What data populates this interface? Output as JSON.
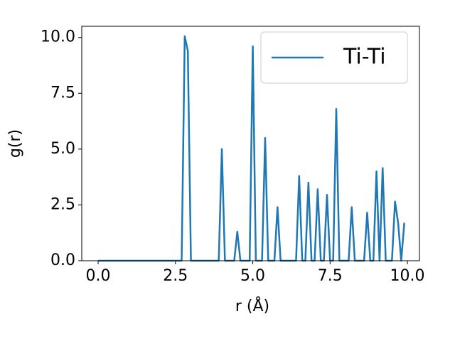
{
  "chart_data": {
    "type": "line",
    "xlabel": "r (Å)",
    "ylabel": "g(r)",
    "x": [
      0,
      0.1,
      0.2,
      0.3,
      0.4,
      0.5,
      0.6,
      0.7,
      0.8,
      0.9,
      1,
      1.1,
      1.2,
      1.3,
      1.4,
      1.5,
      1.6,
      1.7,
      1.8,
      1.9,
      2,
      2.1,
      2.2,
      2.3,
      2.4,
      2.5,
      2.6,
      2.7,
      2.8,
      2.9,
      3,
      3.1,
      3.2,
      3.3,
      3.4,
      3.5,
      3.6,
      3.7,
      3.8,
      3.9,
      4,
      4.1,
      4.2,
      4.3,
      4.4,
      4.5,
      4.6,
      4.7,
      4.8,
      4.9,
      5,
      5.1,
      5.2,
      5.3,
      5.4,
      5.5,
      5.6,
      5.7,
      5.8,
      5.9,
      6,
      6.1,
      6.2,
      6.3,
      6.4,
      6.5,
      6.6,
      6.7,
      6.8,
      6.9,
      7,
      7.1,
      7.2,
      7.3,
      7.4,
      7.5,
      7.6,
      7.7,
      7.8,
      7.9,
      8,
      8.1,
      8.2,
      8.3,
      8.4,
      8.5,
      8.6,
      8.7,
      8.8,
      8.9,
      9,
      9.1,
      9.2,
      9.3,
      9.4,
      9.5,
      9.6,
      9.7,
      9.8,
      9.9
    ],
    "series": [
      {
        "name": "Ti-Ti",
        "color": "#1f77b4",
        "values": [
          0,
          0,
          0,
          0,
          0,
          0,
          0,
          0,
          0,
          0,
          0,
          0,
          0,
          0,
          0,
          0,
          0,
          0,
          0,
          0,
          0,
          0,
          0,
          0,
          0,
          0,
          0,
          0,
          10.05,
          9.4,
          0,
          0,
          0,
          0,
          0,
          0,
          0,
          0,
          0,
          0,
          5.0,
          0,
          0,
          0,
          0,
          1.3,
          0,
          0,
          0,
          0,
          9.6,
          0,
          0,
          0,
          5.5,
          0,
          0,
          0,
          2.4,
          0,
          0,
          0,
          0,
          0,
          0,
          3.8,
          0,
          0,
          3.5,
          0,
          0,
          3.2,
          0,
          0,
          2.95,
          0,
          0,
          6.8,
          0,
          0,
          0,
          0,
          2.4,
          0,
          0,
          0,
          0,
          2.15,
          0,
          0,
          4.0,
          0,
          4.15,
          0,
          0,
          0,
          2.65,
          1.7,
          0,
          1.7
        ]
      }
    ],
    "xlim": [
      -0.53,
      10.39
    ],
    "ylim": [
      0,
      10.5
    ],
    "xticks": [
      {
        "value": 0,
        "label": "0.0"
      },
      {
        "value": 2.5,
        "label": "2.5"
      },
      {
        "value": 5,
        "label": "5.0"
      },
      {
        "value": 7.5,
        "label": "7.5"
      },
      {
        "value": 10,
        "label": "10.0"
      }
    ],
    "yticks": [
      {
        "value": 0,
        "label": "0.0"
      },
      {
        "value": 2.5,
        "label": "2.5"
      },
      {
        "value": 5,
        "label": "5.0"
      },
      {
        "value": 7.5,
        "label": "7.5"
      },
      {
        "value": 10,
        "label": "10.0"
      }
    ],
    "grid": false,
    "legend": "upper right"
  }
}
